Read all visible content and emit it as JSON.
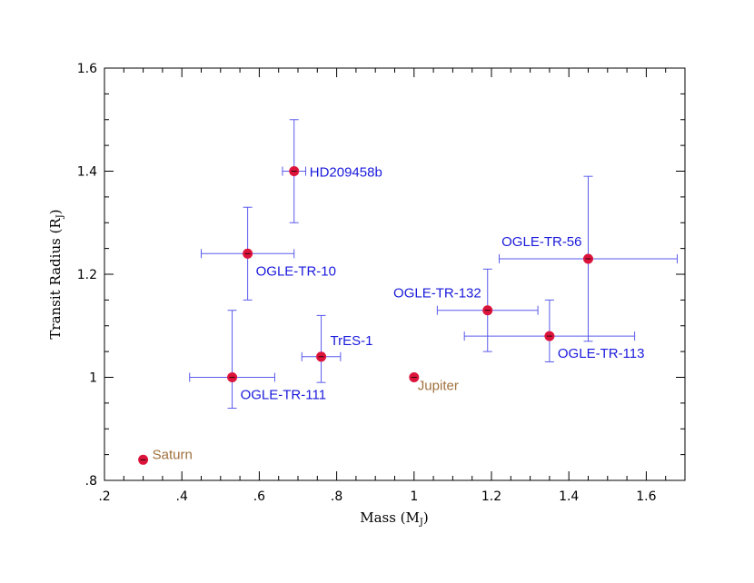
{
  "chart_data": {
    "type": "scatter",
    "title": "",
    "xlabel": "Mass (M",
    "xlabel_sub": "J",
    "ylabel": "Transit Radius (R",
    "ylabel_sub": "J",
    "xlim": [
      0.2,
      1.7
    ],
    "ylim": [
      0.8,
      1.6
    ],
    "grid": false,
    "x_ticks": [
      {
        "value": 0.2,
        "label": ".2"
      },
      {
        "value": 0.4,
        "label": ".4"
      },
      {
        "value": 0.6,
        "label": ".6"
      },
      {
        "value": 0.8,
        "label": ".8"
      },
      {
        "value": 1.0,
        "label": "1"
      },
      {
        "value": 1.2,
        "label": "1.2"
      },
      {
        "value": 1.4,
        "label": "1.4"
      },
      {
        "value": 1.6,
        "label": "1.6"
      }
    ],
    "y_ticks": [
      {
        "value": 0.8,
        "label": ".8"
      },
      {
        "value": 1.0,
        "label": "1"
      },
      {
        "value": 1.2,
        "label": "1.2"
      },
      {
        "value": 1.4,
        "label": "1.4"
      },
      {
        "value": 1.6,
        "label": "1.6"
      }
    ],
    "colors": {
      "marker": "#dc143c",
      "errorbar": "#5a5aee",
      "planet_label": "#1a1adc",
      "reference_label": "#a0703c"
    },
    "points": [
      {
        "name": "HD209458b",
        "x": 0.69,
        "y": 1.4,
        "xerr": [
          0.03,
          0.03
        ],
        "yerr": [
          0.1,
          0.1
        ],
        "kind": "planet",
        "label_pos": "right"
      },
      {
        "name": "OGLE-TR-10",
        "x": 0.57,
        "y": 1.24,
        "xerr": [
          0.12,
          0.12
        ],
        "yerr": [
          0.09,
          0.09
        ],
        "kind": "planet",
        "label_pos": "below-right"
      },
      {
        "name": "OGLE-TR-56",
        "x": 1.45,
        "y": 1.23,
        "xerr": [
          0.23,
          0.23
        ],
        "yerr": [
          0.16,
          0.16
        ],
        "kind": "planet",
        "label_pos": "above-left"
      },
      {
        "name": "OGLE-TR-132",
        "x": 1.19,
        "y": 1.13,
        "xerr": [
          0.13,
          0.13
        ],
        "yerr": [
          0.08,
          0.08
        ],
        "kind": "planet",
        "label_pos": "above-left"
      },
      {
        "name": "OGLE-TR-113",
        "x": 1.35,
        "y": 1.08,
        "xerr": [
          0.22,
          0.22
        ],
        "yerr": [
          0.05,
          0.07
        ],
        "kind": "planet",
        "label_pos": "below-right"
      },
      {
        "name": "TrES-1",
        "x": 0.76,
        "y": 1.04,
        "xerr": [
          0.05,
          0.05
        ],
        "yerr": [
          0.05,
          0.08
        ],
        "kind": "planet",
        "label_pos": "above-right"
      },
      {
        "name": "OGLE-TR-111",
        "x": 0.53,
        "y": 1.0,
        "xerr": [
          0.11,
          0.11
        ],
        "yerr": [
          0.06,
          0.13
        ],
        "kind": "planet",
        "label_pos": "below-right"
      },
      {
        "name": "Jupiter",
        "x": 1.0,
        "y": 1.0,
        "kind": "reference",
        "label_pos": "below-right"
      },
      {
        "name": "Saturn",
        "x": 0.3,
        "y": 0.84,
        "kind": "reference",
        "label_pos": "right"
      }
    ]
  }
}
